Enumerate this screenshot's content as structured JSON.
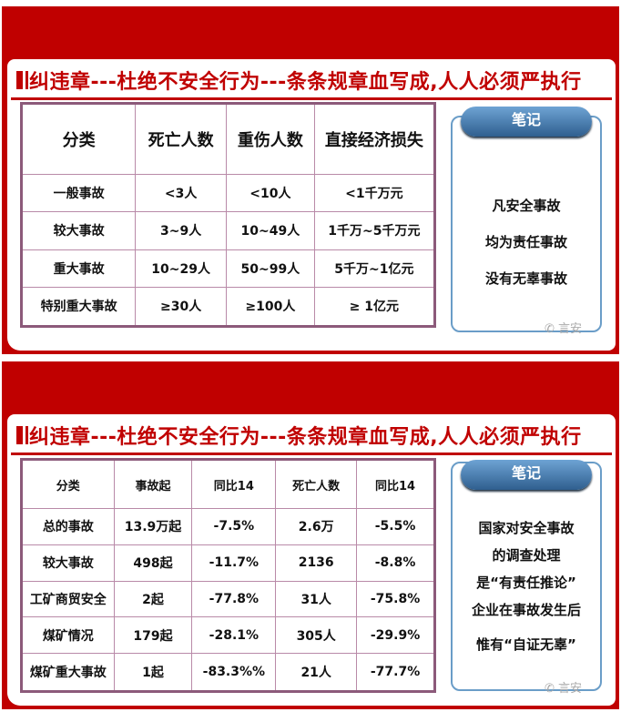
{
  "title": "纠违章---杜绝不安全行为---条条规章血写成,人人必须严执行",
  "panel1": {
    "headers": [
      "分类",
      "死亡人数",
      "重伤人数",
      "直接经济损失"
    ],
    "rows": [
      [
        "一般事故",
        "<3人",
        "<10人",
        "<1千万元"
      ],
      [
        "较大事故",
        "3~9人",
        "10~49人",
        "1千万~5千万元"
      ],
      [
        "重大事故",
        "10~29人",
        "50~99人",
        "5千万~1亿元"
      ],
      [
        "特别重大事故",
        "≥30人",
        "≥100人",
        "≥ 1亿元"
      ]
    ],
    "notes_title": "笔记",
    "notes": [
      "凡安全事故",
      "均为责任事故",
      "没有无辜事故"
    ]
  },
  "panel2": {
    "headers": [
      "分类",
      "事故起",
      "同比14",
      "死亡人数",
      "同比14"
    ],
    "rows": [
      [
        "总的事故",
        "13.9万起",
        "-7.5%",
        "2.6万",
        "-5.5%"
      ],
      [
        "较大事故",
        "498起",
        "-11.7%",
        "2136",
        "-8.8%"
      ],
      [
        "工矿商贸安全",
        "2起",
        "-77.8%",
        "31人",
        "-75.8%"
      ],
      [
        "煤矿情况",
        "179起",
        "-28.1%",
        "305人",
        "-29.9%"
      ],
      [
        "煤矿重大事故",
        "1起",
        "-83.3%%",
        "21人",
        "-77.7%"
      ]
    ],
    "notes_title": "笔记",
    "notes": [
      "国家对安全事故",
      "的调查处理",
      "是“有责任推论”",
      "企业在事故发生后",
      "惟有“自证无辜”"
    ]
  },
  "watermark": "言安",
  "colors": {
    "brand_red": "#c00000",
    "table_border": "#8c5a7a",
    "notes_blue": "#6a9dc8"
  }
}
